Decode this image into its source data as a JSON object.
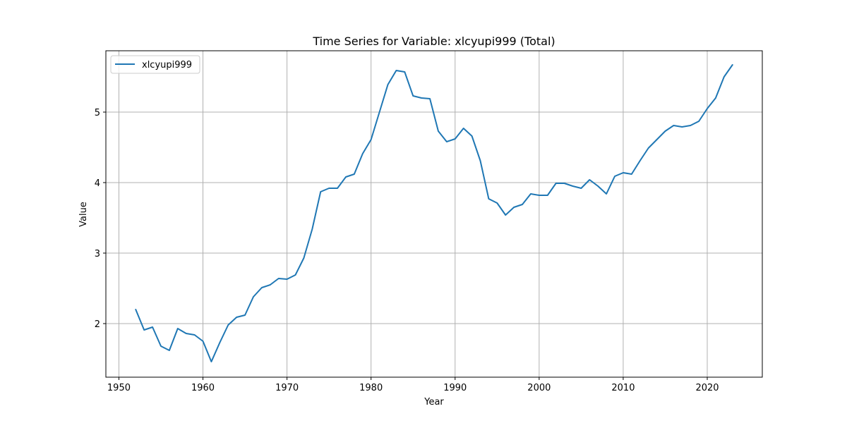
{
  "chart_data": {
    "type": "line",
    "title": "Time Series for Variable: xlcyupi999 (Total)",
    "xlabel": "Year",
    "ylabel": "Value",
    "xlim": [
      1948.45,
      1926.5
    ],
    "ylim": [
      1.24,
      5.87
    ],
    "x_ticks": [
      1950,
      1960,
      1970,
      1980,
      1990,
      2000,
      2010,
      2020
    ],
    "y_ticks": [
      2,
      3,
      4,
      5
    ],
    "grid": true,
    "legend_position": "upper left",
    "series": [
      {
        "name": "xlcyupi999",
        "color": "#1f77b4",
        "x": [
          1952,
          1953,
          1954,
          1955,
          1956,
          1957,
          1958,
          1959,
          1960,
          1961,
          1962,
          1963,
          1964,
          1965,
          1966,
          1967,
          1968,
          1969,
          1970,
          1971,
          1972,
          1973,
          1974,
          1975,
          1976,
          1977,
          1978,
          1979,
          1980,
          1981,
          1982,
          1983,
          1984,
          1985,
          1986,
          1987,
          1988,
          1989,
          1990,
          1991,
          1992,
          1993,
          1994,
          1995,
          1996,
          1997,
          1998,
          1999,
          2000,
          2001,
          2002,
          2003,
          2004,
          2005,
          2006,
          2007,
          2008,
          2009,
          2010,
          2011,
          2012,
          2013,
          2014,
          2015,
          2016,
          2017,
          2018,
          2019,
          2020,
          2021,
          2022,
          2023
        ],
        "values": [
          2.2,
          1.91,
          1.95,
          1.68,
          1.62,
          1.93,
          1.86,
          1.84,
          1.75,
          1.46,
          1.73,
          1.98,
          2.09,
          2.12,
          2.38,
          2.51,
          2.55,
          2.64,
          2.63,
          2.69,
          2.93,
          3.34,
          3.87,
          3.92,
          3.92,
          4.08,
          4.12,
          4.41,
          4.61,
          5.0,
          5.39,
          5.59,
          5.57,
          5.23,
          5.2,
          5.19,
          4.73,
          4.58,
          4.62,
          4.77,
          4.66,
          4.31,
          3.77,
          3.71,
          3.54,
          3.65,
          3.69,
          3.84,
          3.82,
          3.82,
          3.99,
          3.99,
          3.95,
          3.92,
          4.04,
          3.95,
          3.84,
          4.09,
          4.14,
          4.12,
          4.31,
          4.49,
          4.61,
          4.73,
          4.81,
          4.79,
          4.81,
          4.87,
          5.05,
          5.2,
          5.5,
          5.67
        ]
      }
    ]
  }
}
